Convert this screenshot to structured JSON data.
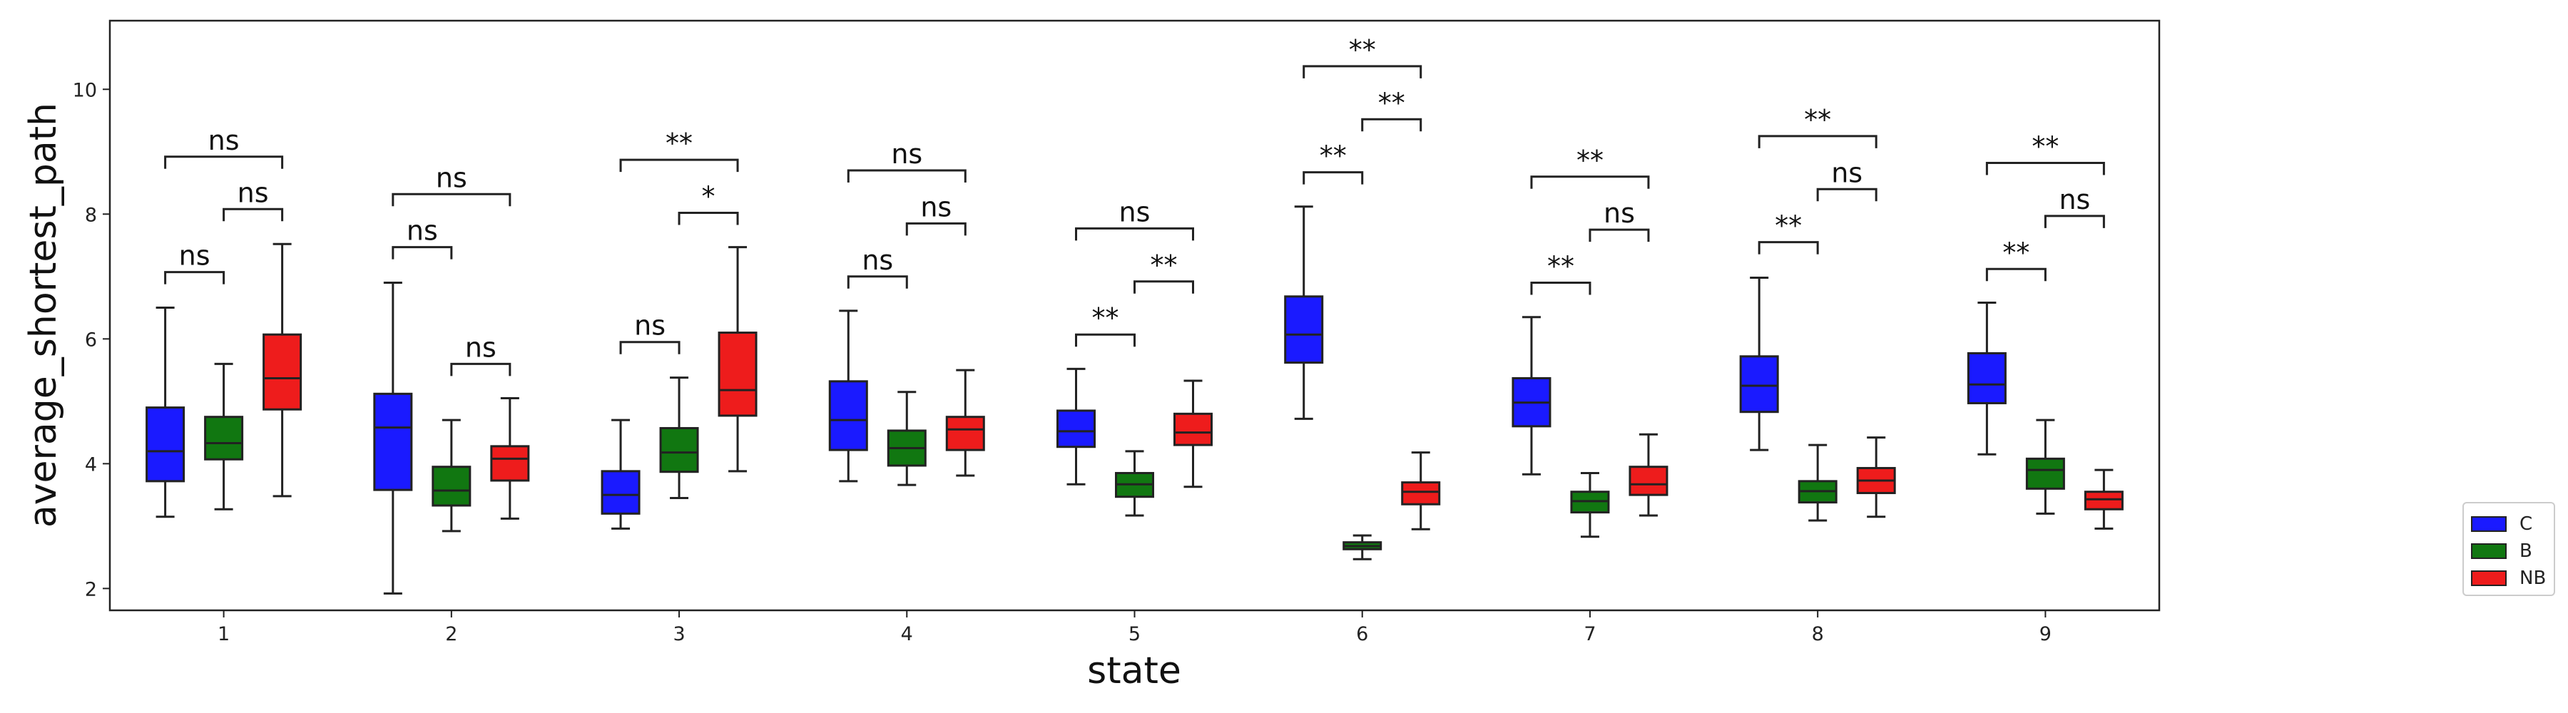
{
  "chart_data": {
    "type": "box",
    "xlabel": "state",
    "ylabel": "average_shortest_path",
    "categories": [
      "1",
      "2",
      "3",
      "4",
      "5",
      "6",
      "7",
      "8",
      "9"
    ],
    "ylim": [
      1.65,
      11.1
    ],
    "yticks": [
      2,
      4,
      6,
      8,
      10
    ],
    "grid": false,
    "legend_position": "outside-bottom-right",
    "series": [
      {
        "name": "C",
        "color": "#1a1aff",
        "boxes": [
          {
            "min": 3.15,
            "q1": 3.72,
            "median": 4.2,
            "q3": 4.9,
            "max": 6.5
          },
          {
            "min": 1.92,
            "q1": 3.58,
            "median": 4.58,
            "q3": 5.12,
            "max": 6.9
          },
          {
            "min": 2.96,
            "q1": 3.2,
            "median": 3.5,
            "q3": 3.88,
            "max": 4.7
          },
          {
            "min": 3.72,
            "q1": 4.22,
            "median": 4.7,
            "q3": 5.32,
            "max": 6.45
          },
          {
            "min": 3.67,
            "q1": 4.27,
            "median": 4.52,
            "q3": 4.85,
            "max": 5.52
          },
          {
            "min": 4.72,
            "q1": 5.62,
            "median": 6.07,
            "q3": 6.68,
            "max": 8.12
          },
          {
            "min": 3.83,
            "q1": 4.6,
            "median": 4.98,
            "q3": 5.37,
            "max": 6.35
          },
          {
            "min": 4.22,
            "q1": 4.83,
            "median": 5.25,
            "q3": 5.72,
            "max": 6.98
          },
          {
            "min": 4.15,
            "q1": 4.97,
            "median": 5.27,
            "q3": 5.77,
            "max": 6.58
          }
        ]
      },
      {
        "name": "B",
        "color": "#117711",
        "boxes": [
          {
            "min": 3.27,
            "q1": 4.07,
            "median": 4.33,
            "q3": 4.75,
            "max": 5.6
          },
          {
            "min": 2.92,
            "q1": 3.33,
            "median": 3.57,
            "q3": 3.95,
            "max": 4.7
          },
          {
            "min": 3.45,
            "q1": 3.87,
            "median": 4.18,
            "q3": 4.57,
            "max": 5.38
          },
          {
            "min": 3.66,
            "q1": 3.97,
            "median": 4.25,
            "q3": 4.53,
            "max": 5.15
          },
          {
            "min": 3.17,
            "q1": 3.47,
            "median": 3.67,
            "q3": 3.85,
            "max": 4.2
          },
          {
            "min": 2.47,
            "q1": 2.63,
            "median": 2.68,
            "q3": 2.74,
            "max": 2.85
          },
          {
            "min": 2.83,
            "q1": 3.22,
            "median": 3.4,
            "q3": 3.55,
            "max": 3.85
          },
          {
            "min": 3.09,
            "q1": 3.38,
            "median": 3.56,
            "q3": 3.72,
            "max": 4.3
          },
          {
            "min": 3.2,
            "q1": 3.6,
            "median": 3.9,
            "q3": 4.08,
            "max": 4.7
          }
        ]
      },
      {
        "name": "NB",
        "color": "#ee1c1c",
        "boxes": [
          {
            "min": 3.48,
            "q1": 4.87,
            "median": 5.37,
            "q3": 6.07,
            "max": 7.52
          },
          {
            "min": 3.12,
            "q1": 3.73,
            "median": 4.08,
            "q3": 4.28,
            "max": 5.05
          },
          {
            "min": 3.88,
            "q1": 4.77,
            "median": 5.18,
            "q3": 6.1,
            "max": 7.47
          },
          {
            "min": 3.81,
            "q1": 4.22,
            "median": 4.55,
            "q3": 4.75,
            "max": 5.5
          },
          {
            "min": 3.63,
            "q1": 4.3,
            "median": 4.5,
            "q3": 4.8,
            "max": 5.33
          },
          {
            "min": 2.95,
            "q1": 3.35,
            "median": 3.55,
            "q3": 3.7,
            "max": 4.18
          },
          {
            "min": 3.17,
            "q1": 3.5,
            "median": 3.67,
            "q3": 3.95,
            "max": 4.47
          },
          {
            "min": 3.15,
            "q1": 3.53,
            "median": 3.73,
            "q3": 3.93,
            "max": 4.42
          },
          {
            "min": 2.96,
            "q1": 3.27,
            "median": 3.43,
            "q3": 3.55,
            "max": 3.9
          }
        ]
      }
    ],
    "annotations": [
      {
        "category": "1",
        "from": "C",
        "to": "B",
        "y": 7.07,
        "label": "ns"
      },
      {
        "category": "1",
        "from": "B",
        "to": "NB",
        "y": 8.08,
        "label": "ns"
      },
      {
        "category": "1",
        "from": "C",
        "to": "NB",
        "y": 8.92,
        "label": "ns"
      },
      {
        "category": "2",
        "from": "C",
        "to": "B",
        "y": 7.47,
        "label": "ns"
      },
      {
        "category": "2",
        "from": "B",
        "to": "NB",
        "y": 5.6,
        "label": "ns"
      },
      {
        "category": "2",
        "from": "C",
        "to": "NB",
        "y": 8.32,
        "label": "ns"
      },
      {
        "category": "3",
        "from": "C",
        "to": "B",
        "y": 5.95,
        "label": "ns"
      },
      {
        "category": "3",
        "from": "B",
        "to": "NB",
        "y": 8.02,
        "label": "*"
      },
      {
        "category": "3",
        "from": "C",
        "to": "NB",
        "y": 8.87,
        "label": "**"
      },
      {
        "category": "4",
        "from": "C",
        "to": "B",
        "y": 7.0,
        "label": "ns"
      },
      {
        "category": "4",
        "from": "B",
        "to": "NB",
        "y": 7.85,
        "label": "ns"
      },
      {
        "category": "4",
        "from": "C",
        "to": "NB",
        "y": 8.7,
        "label": "ns"
      },
      {
        "category": "5",
        "from": "C",
        "to": "B",
        "y": 6.07,
        "label": "**"
      },
      {
        "category": "5",
        "from": "B",
        "to": "NB",
        "y": 6.92,
        "label": "**"
      },
      {
        "category": "5",
        "from": "C",
        "to": "NB",
        "y": 7.77,
        "label": "ns"
      },
      {
        "category": "6",
        "from": "C",
        "to": "B",
        "y": 8.67,
        "label": "**"
      },
      {
        "category": "6",
        "from": "B",
        "to": "NB",
        "y": 9.52,
        "label": "**"
      },
      {
        "category": "6",
        "from": "C",
        "to": "NB",
        "y": 10.37,
        "label": "**"
      },
      {
        "category": "7",
        "from": "C",
        "to": "B",
        "y": 6.9,
        "label": "**"
      },
      {
        "category": "7",
        "from": "B",
        "to": "NB",
        "y": 7.75,
        "label": "ns"
      },
      {
        "category": "7",
        "from": "C",
        "to": "NB",
        "y": 8.6,
        "label": "**"
      },
      {
        "category": "8",
        "from": "C",
        "to": "B",
        "y": 7.55,
        "label": "**"
      },
      {
        "category": "8",
        "from": "B",
        "to": "NB",
        "y": 8.4,
        "label": "ns"
      },
      {
        "category": "8",
        "from": "C",
        "to": "NB",
        "y": 9.25,
        "label": "**"
      },
      {
        "category": "9",
        "from": "C",
        "to": "B",
        "y": 7.12,
        "label": "**"
      },
      {
        "category": "9",
        "from": "B",
        "to": "NB",
        "y": 7.97,
        "label": "ns"
      },
      {
        "category": "9",
        "from": "C",
        "to": "NB",
        "y": 8.82,
        "label": "**"
      }
    ]
  }
}
